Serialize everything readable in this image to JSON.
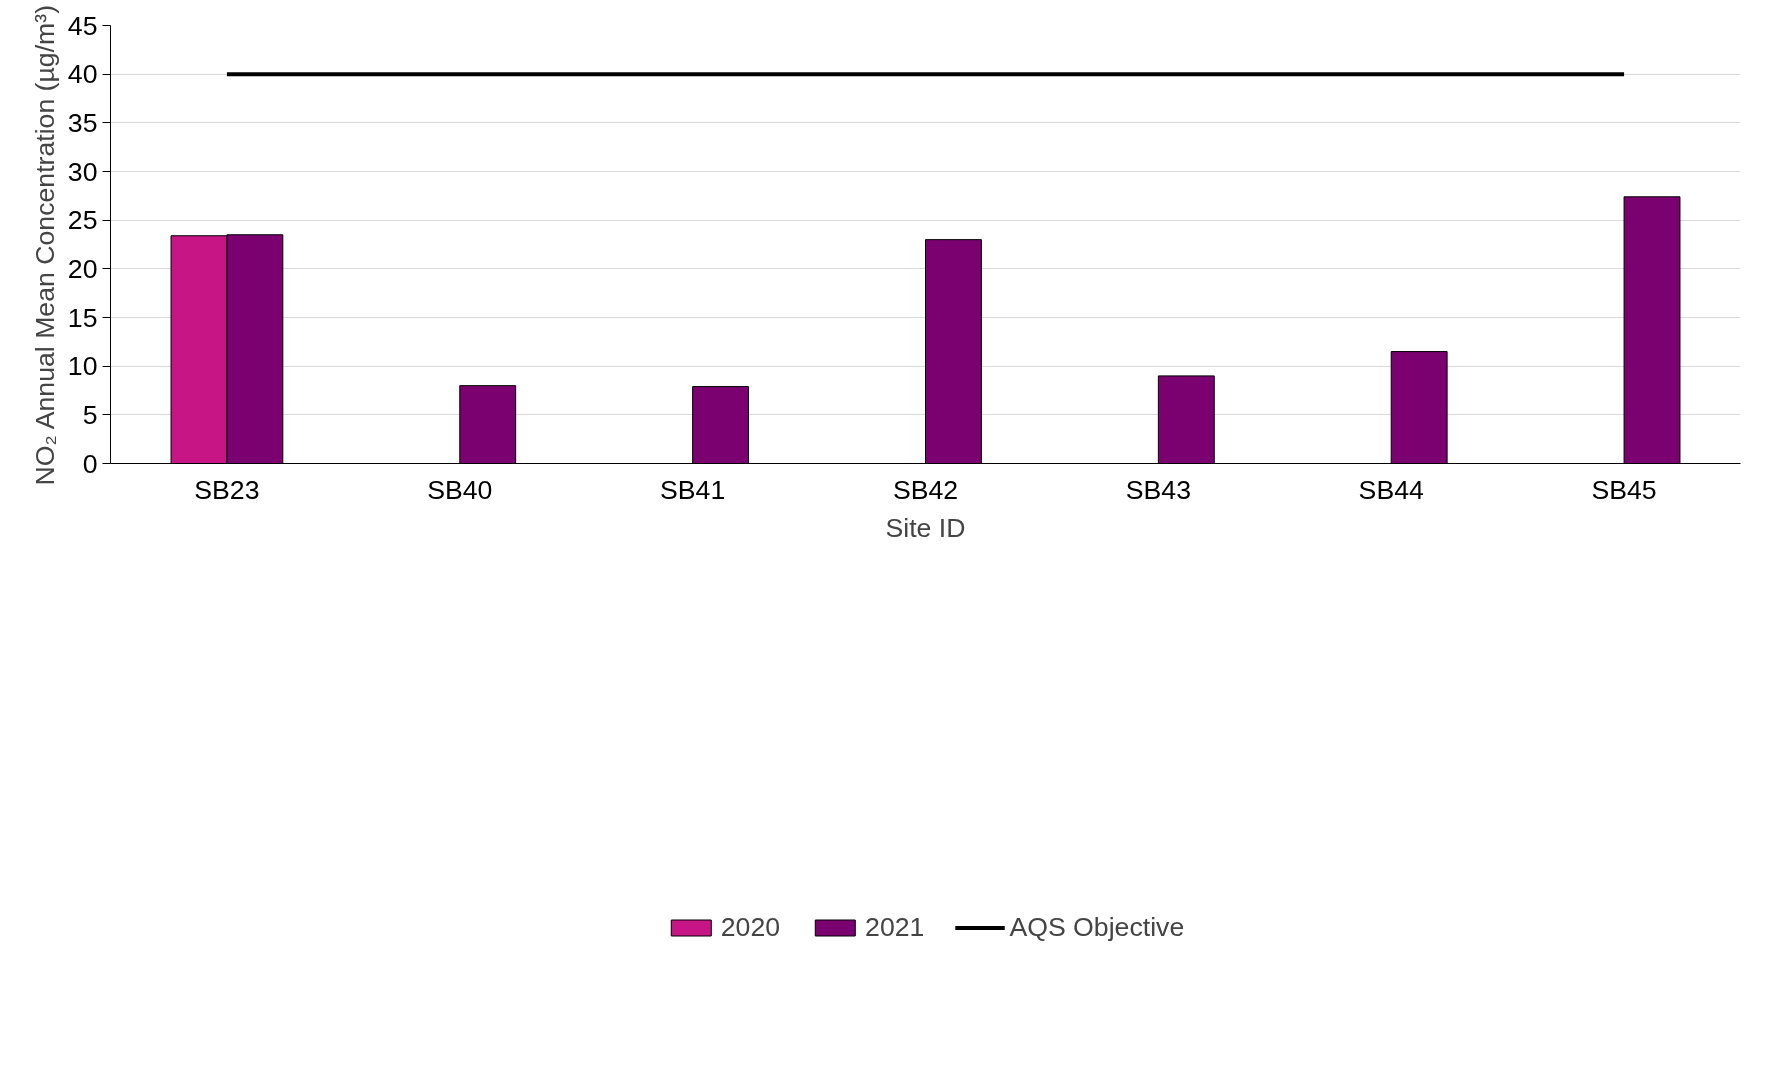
{
  "chart_data": {
    "type": "bar",
    "xlabel": "Site ID",
    "ylabel": "NO₂ Annual Mean Concentration (µg/m³)",
    "categories": [
      "SB23",
      "SB40",
      "SB41",
      "SB42",
      "SB43",
      "SB44",
      "SB45"
    ],
    "series": [
      {
        "name": "2020",
        "color": "#c71585",
        "values": [
          23.4,
          null,
          null,
          null,
          null,
          null,
          null
        ]
      },
      {
        "name": "2021",
        "color": "#7b0070",
        "values": [
          23.5,
          8.0,
          7.9,
          23.0,
          9.0,
          11.5,
          27.4
        ]
      },
      {
        "name": "AQS Objective",
        "type": "line",
        "color": "#000000",
        "values": [
          40,
          40,
          40,
          40,
          40,
          40,
          40
        ]
      }
    ],
    "ylim": [
      0,
      45
    ],
    "yticks": [
      0,
      5,
      10,
      15,
      20,
      25,
      30,
      35,
      40,
      45
    ],
    "grid": "y",
    "legend": "bottom"
  }
}
